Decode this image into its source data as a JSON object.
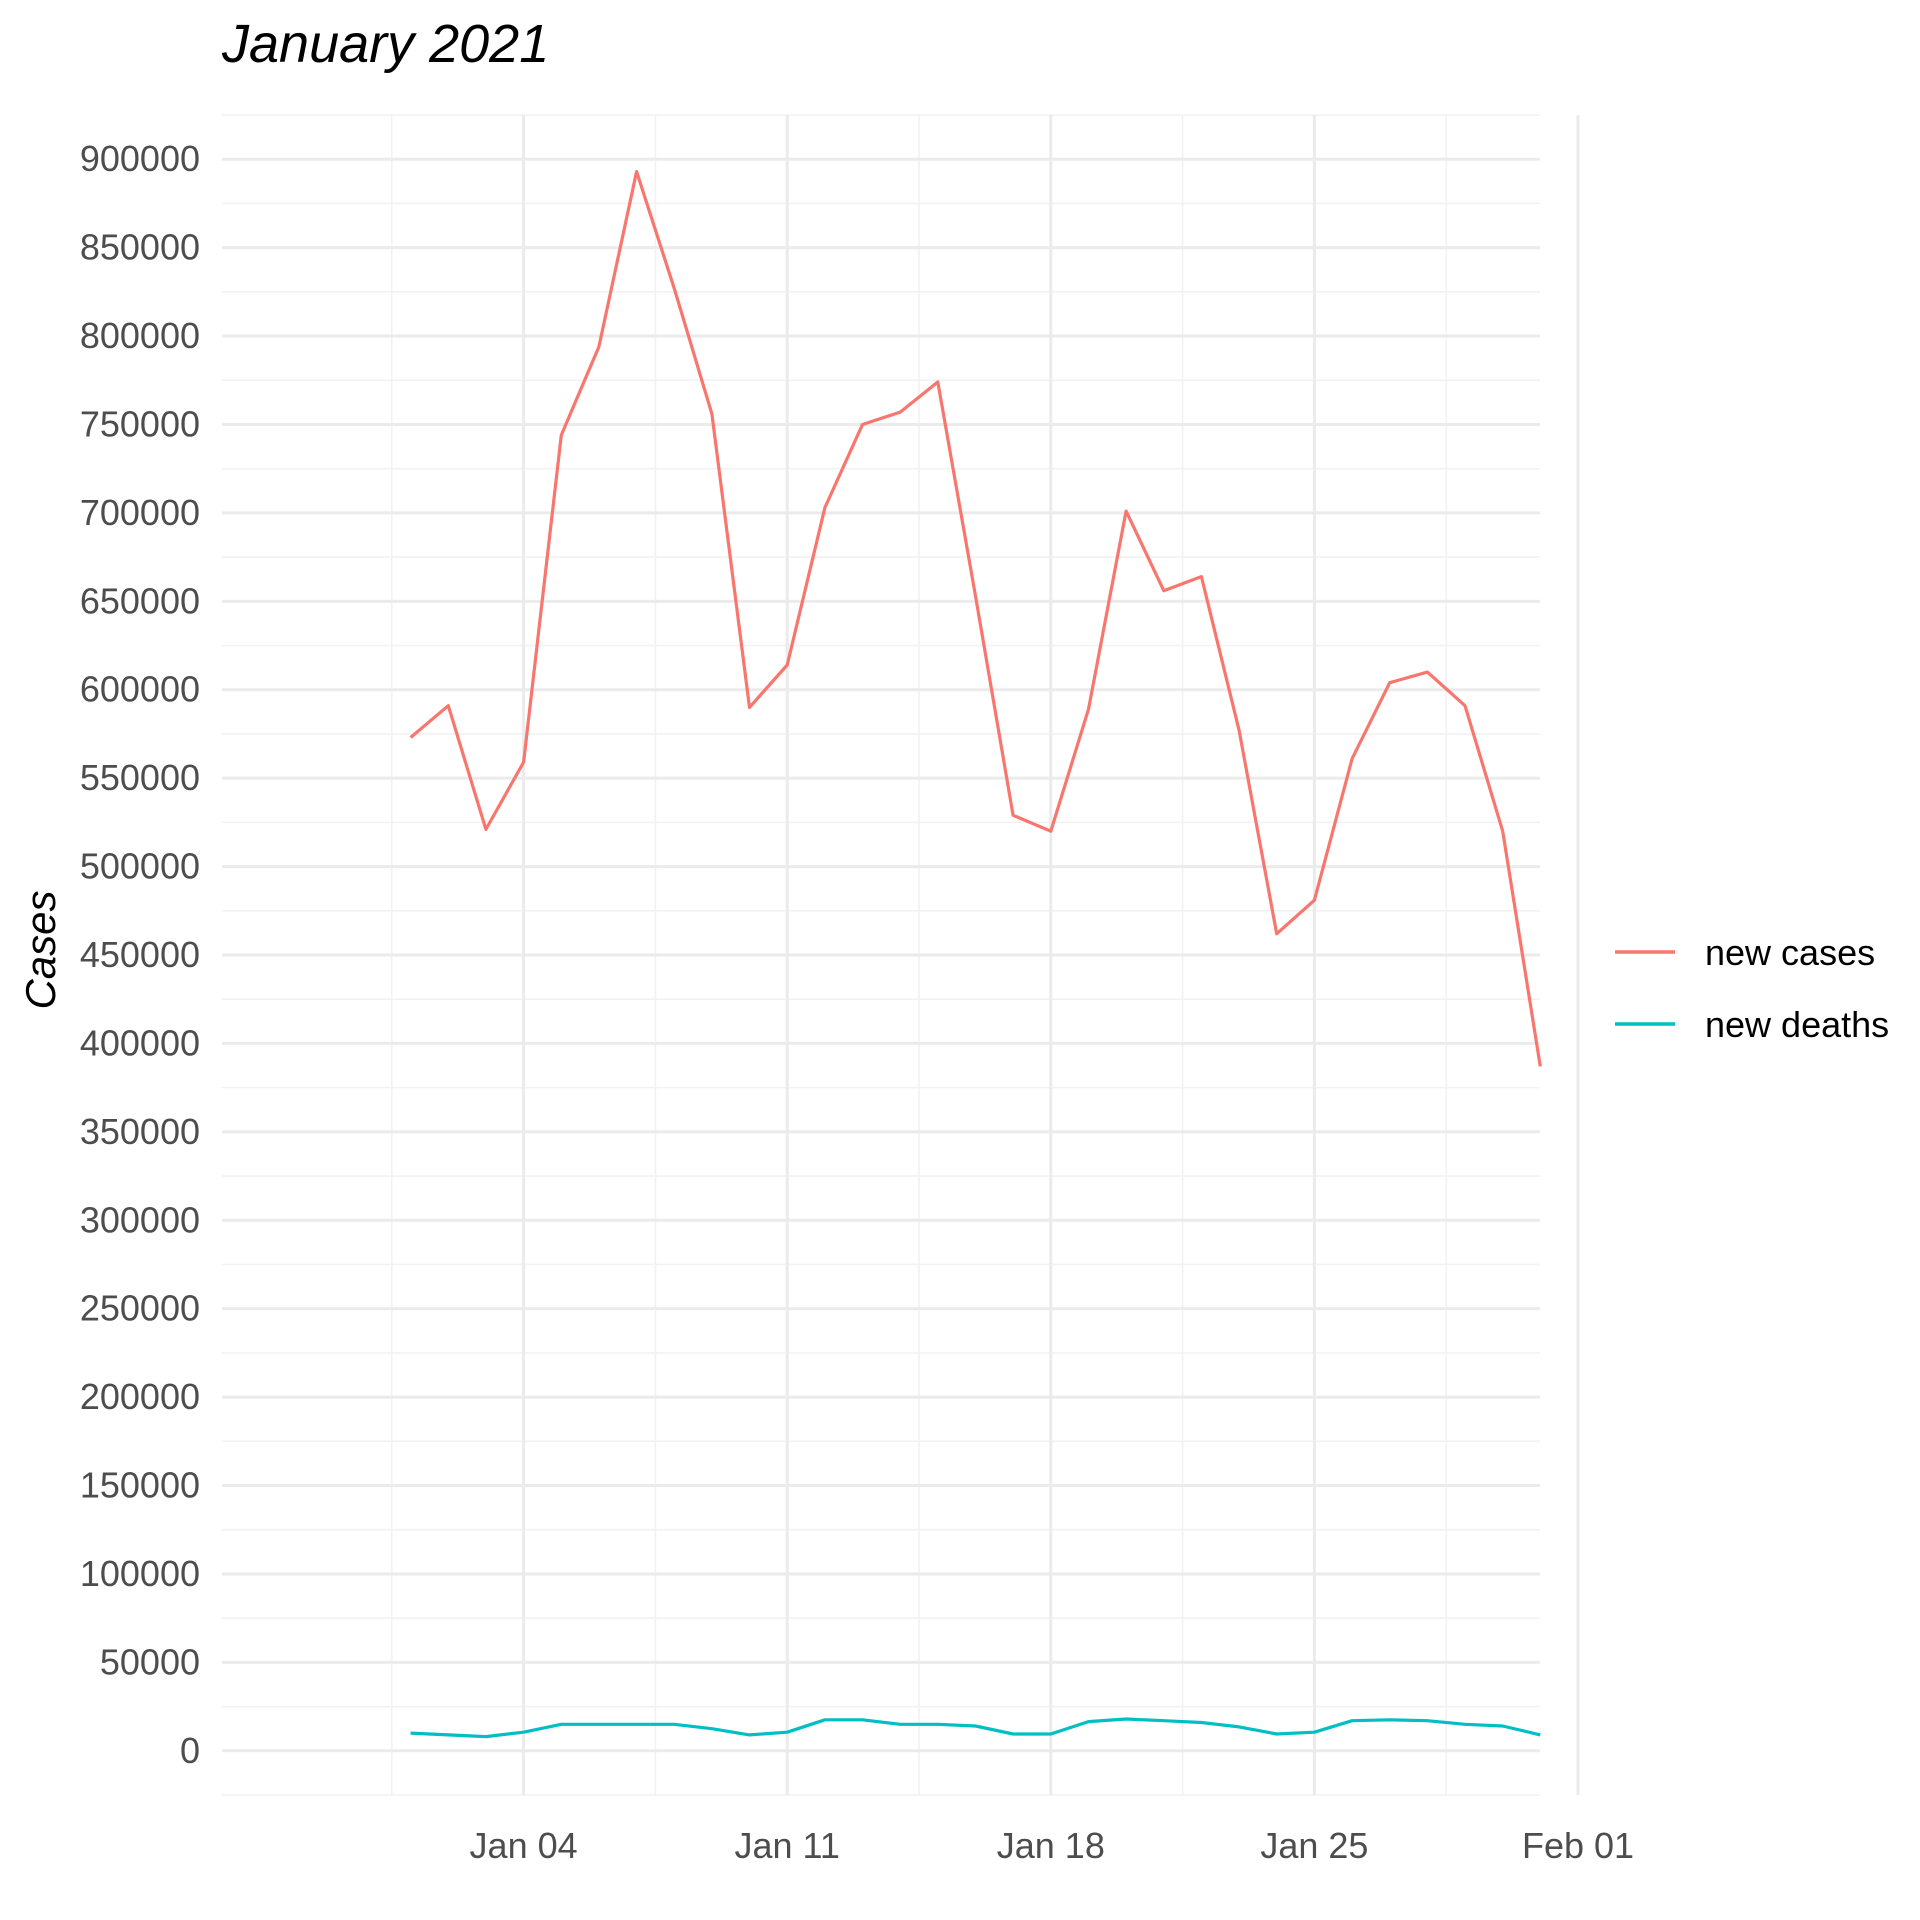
{
  "chart_data": {
    "type": "line",
    "title": "January 2021",
    "ylabel": "Cases",
    "xlabel": "",
    "x": [
      "2021-01-01",
      "2021-01-02",
      "2021-01-03",
      "2021-01-04",
      "2021-01-05",
      "2021-01-06",
      "2021-01-07",
      "2021-01-08",
      "2021-01-09",
      "2021-01-10",
      "2021-01-11",
      "2021-01-12",
      "2021-01-13",
      "2021-01-14",
      "2021-01-15",
      "2021-01-16",
      "2021-01-17",
      "2021-01-18",
      "2021-01-19",
      "2021-01-20",
      "2021-01-21",
      "2021-01-22",
      "2021-01-23",
      "2021-01-24",
      "2021-01-25",
      "2021-01-26",
      "2021-01-27",
      "2021-01-28",
      "2021-01-29",
      "2021-01-30",
      "2021-01-31"
    ],
    "xlim": [
      "2020-12-28",
      "2021-02-01"
    ],
    "ylim": [
      -25000,
      925000
    ],
    "x_ticks": [
      {
        "date": "2021-01-04",
        "label": "Jan 04"
      },
      {
        "date": "2021-01-11",
        "label": "Jan 11"
      },
      {
        "date": "2021-01-18",
        "label": "Jan 18"
      },
      {
        "date": "2021-01-25",
        "label": "Jan 25"
      },
      {
        "date": "2021-02-01",
        "label": "Feb 01"
      }
    ],
    "y_ticks": [
      0,
      50000,
      100000,
      150000,
      200000,
      250000,
      300000,
      350000,
      400000,
      450000,
      500000,
      550000,
      600000,
      650000,
      700000,
      750000,
      800000,
      850000,
      900000
    ],
    "grid": true,
    "legend_position": "right",
    "series": [
      {
        "name": "new cases",
        "color": "#F8766D",
        "values": [
          573000,
          591000,
          521000,
          559000,
          744000,
          794000,
          893000,
          827000,
          756000,
          590000,
          614000,
          703000,
          750000,
          757000,
          774000,
          653000,
          529000,
          520000,
          589000,
          701000,
          656000,
          664000,
          577000,
          462000,
          481000,
          561000,
          604000,
          610000,
          591000,
          520000,
          387000
        ]
      },
      {
        "name": "new deaths",
        "color": "#00BFC4",
        "values": [
          10000,
          9000,
          8000,
          10500,
          15000,
          15000,
          15000,
          15000,
          12500,
          9000,
          10500,
          17500,
          17500,
          15000,
          15000,
          14000,
          9500,
          9500,
          16500,
          18000,
          17000,
          16000,
          13500,
          9500,
          10500,
          17000,
          17500,
          17000,
          15000,
          14000,
          9000
        ]
      }
    ]
  }
}
